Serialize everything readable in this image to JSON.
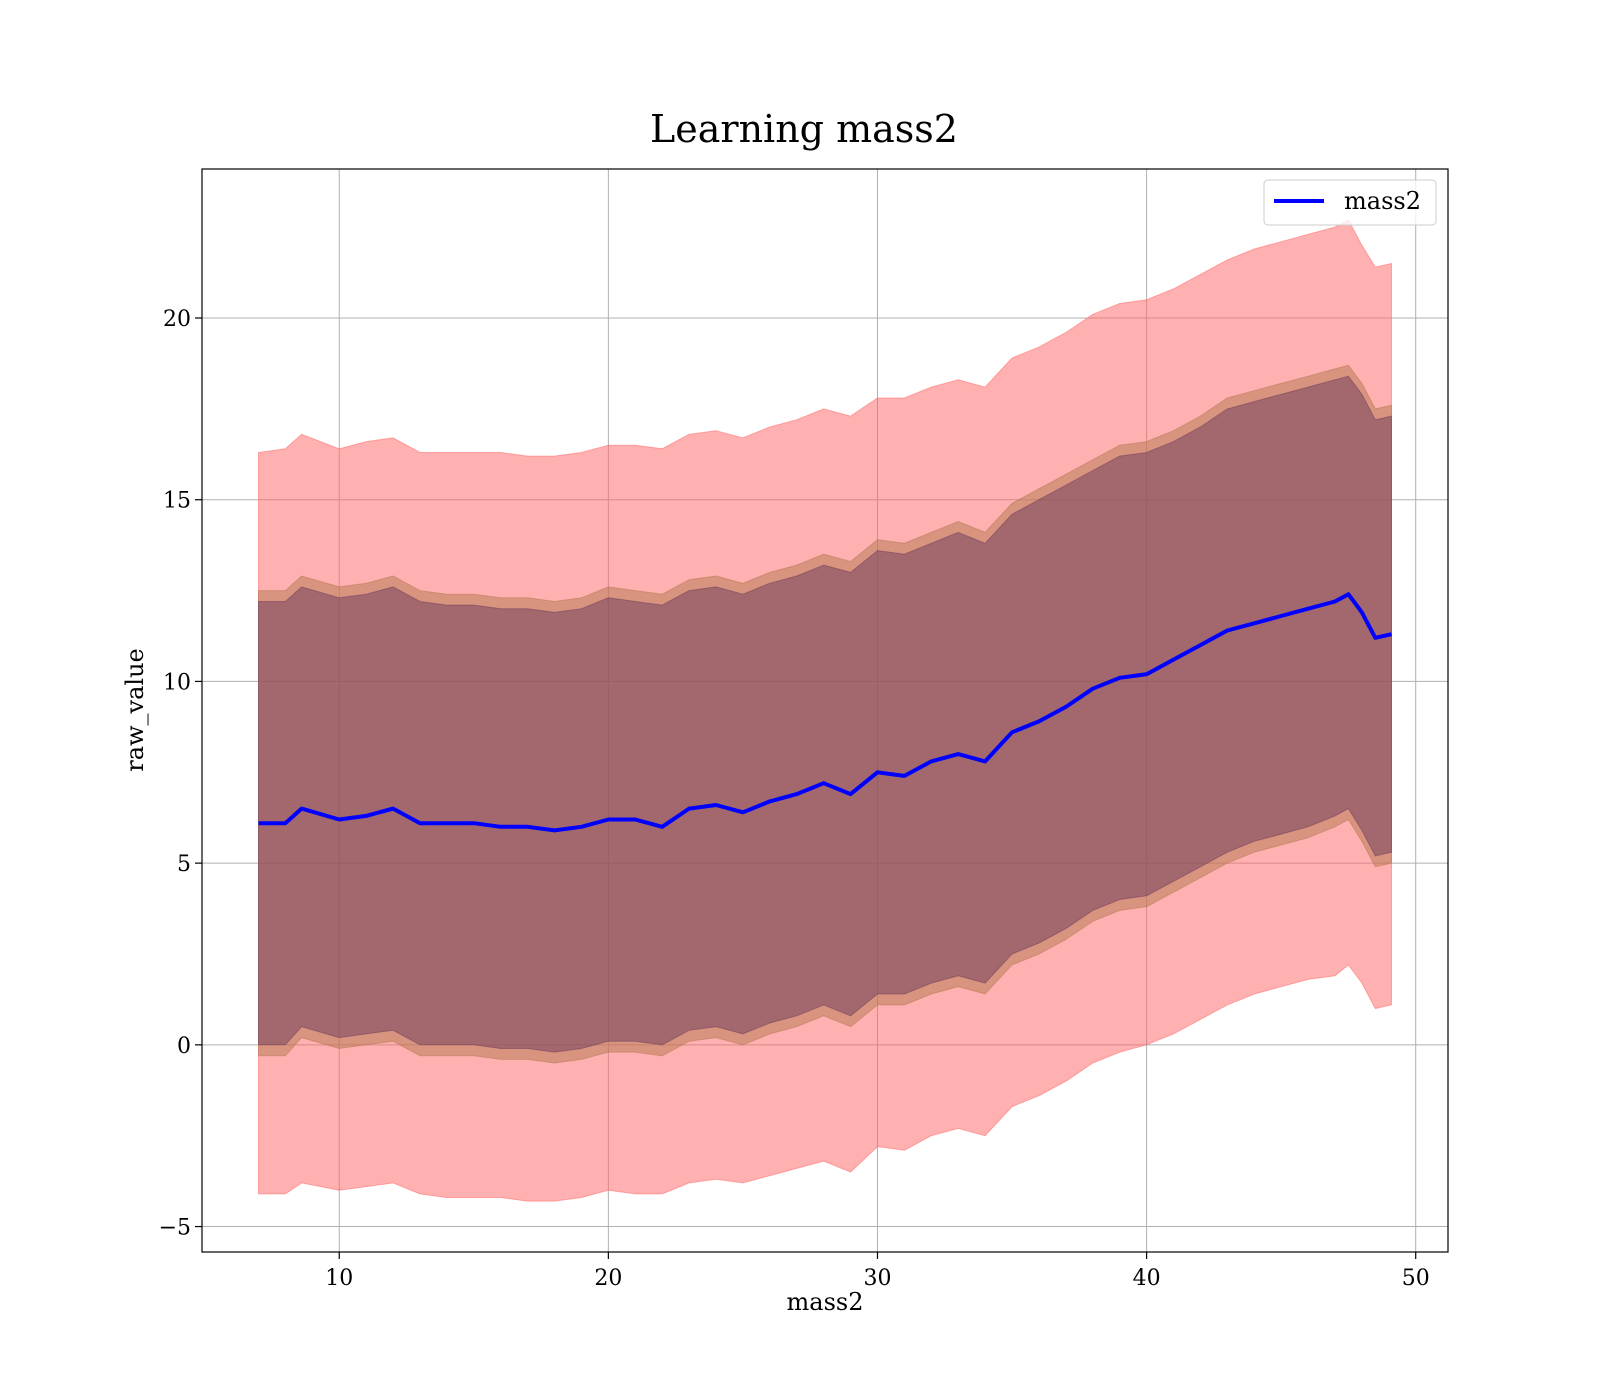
{
  "chart_data": {
    "type": "area",
    "title": "Learning mass2",
    "xlabel": "mass2",
    "ylabel": "raw_value",
    "xlim": [
      4.9,
      51.2
    ],
    "ylim": [
      -5.7,
      24.1
    ],
    "xticks": [
      10,
      20,
      30,
      40,
      50
    ],
    "xtick_labels": [
      "10",
      "20",
      "30",
      "40",
      "50"
    ],
    "yticks": [
      -5,
      0,
      5,
      10,
      15,
      20
    ],
    "ytick_labels": [
      "−5",
      "0",
      "5",
      "10",
      "15",
      "20"
    ],
    "grid": true,
    "legend": {
      "position": "top-right",
      "entries": [
        "mass2"
      ]
    },
    "x": [
      7.0,
      8.0,
      8.6,
      10.0,
      11.0,
      12.0,
      13.0,
      14.0,
      15.0,
      16.0,
      17.0,
      18.0,
      19.0,
      20.0,
      21.0,
      22.0,
      23.0,
      24.0,
      25.0,
      26.0,
      27.0,
      28.0,
      29.0,
      30.0,
      31.0,
      32.0,
      33.0,
      34.0,
      35.0,
      36.0,
      37.0,
      38.0,
      39.0,
      40.0,
      41.0,
      42.0,
      43.0,
      44.0,
      45.0,
      46.0,
      47.0,
      47.5,
      48.0,
      48.5,
      49.1
    ],
    "series": [
      {
        "name": "mass2",
        "color": "#0000ff",
        "values": [
          6.1,
          6.1,
          6.5,
          6.2,
          6.3,
          6.5,
          6.1,
          6.1,
          6.1,
          6.0,
          6.0,
          5.9,
          6.0,
          6.2,
          6.2,
          6.0,
          6.5,
          6.6,
          6.4,
          6.7,
          6.9,
          7.2,
          6.9,
          7.5,
          7.4,
          7.8,
          8.0,
          7.8,
          8.6,
          8.9,
          9.3,
          9.8,
          10.1,
          10.2,
          10.6,
          11.0,
          11.4,
          11.6,
          11.8,
          12.0,
          12.2,
          12.4,
          11.9,
          11.2,
          11.3
        ]
      }
    ],
    "bands": [
      {
        "name": "outer",
        "color": "#ff6464",
        "upper": [
          16.3,
          16.4,
          16.8,
          16.4,
          16.6,
          16.7,
          16.3,
          16.3,
          16.3,
          16.3,
          16.2,
          16.2,
          16.3,
          16.5,
          16.5,
          16.4,
          16.8,
          16.9,
          16.7,
          17.0,
          17.2,
          17.5,
          17.3,
          17.8,
          17.8,
          18.1,
          18.3,
          18.1,
          18.9,
          19.2,
          19.6,
          20.1,
          20.4,
          20.5,
          20.8,
          21.2,
          21.6,
          21.9,
          22.1,
          22.3,
          22.5,
          22.7,
          22.0,
          21.4,
          21.5
        ],
        "lower": [
          -4.1,
          -4.1,
          -3.8,
          -4.0,
          -3.9,
          -3.8,
          -4.1,
          -4.2,
          -4.2,
          -4.2,
          -4.3,
          -4.3,
          -4.2,
          -4.0,
          -4.1,
          -4.1,
          -3.8,
          -3.7,
          -3.8,
          -3.6,
          -3.4,
          -3.2,
          -3.5,
          -2.8,
          -2.9,
          -2.5,
          -2.3,
          -2.5,
          -1.7,
          -1.4,
          -1.0,
          -0.5,
          -0.2,
          0.0,
          0.3,
          0.7,
          1.1,
          1.4,
          1.6,
          1.8,
          1.9,
          2.2,
          1.7,
          1.0,
          1.1
        ]
      },
      {
        "name": "middle",
        "color": "#b47850",
        "upper": [
          12.5,
          12.5,
          12.9,
          12.6,
          12.7,
          12.9,
          12.5,
          12.4,
          12.4,
          12.3,
          12.3,
          12.2,
          12.3,
          12.6,
          12.5,
          12.4,
          12.8,
          12.9,
          12.7,
          13.0,
          13.2,
          13.5,
          13.3,
          13.9,
          13.8,
          14.1,
          14.4,
          14.1,
          14.9,
          15.3,
          15.7,
          16.1,
          16.5,
          16.6,
          16.9,
          17.3,
          17.8,
          18.0,
          18.2,
          18.4,
          18.6,
          18.7,
          18.2,
          17.5,
          17.6
        ],
        "lower": [
          -0.3,
          -0.3,
          0.2,
          -0.1,
          0.0,
          0.1,
          -0.3,
          -0.3,
          -0.3,
          -0.4,
          -0.4,
          -0.5,
          -0.4,
          -0.2,
          -0.2,
          -0.3,
          0.1,
          0.2,
          0.0,
          0.3,
          0.5,
          0.8,
          0.5,
          1.1,
          1.1,
          1.4,
          1.6,
          1.4,
          2.2,
          2.5,
          2.9,
          3.4,
          3.7,
          3.8,
          4.2,
          4.6,
          5.0,
          5.3,
          5.5,
          5.7,
          6.0,
          6.2,
          5.6,
          4.9,
          5.0
        ]
      },
      {
        "name": "inner",
        "color": "#6e3c5a",
        "upper": [
          12.2,
          12.2,
          12.6,
          12.3,
          12.4,
          12.6,
          12.2,
          12.1,
          12.1,
          12.0,
          12.0,
          11.9,
          12.0,
          12.3,
          12.2,
          12.1,
          12.5,
          12.6,
          12.4,
          12.7,
          12.9,
          13.2,
          13.0,
          13.6,
          13.5,
          13.8,
          14.1,
          13.8,
          14.6,
          15.0,
          15.4,
          15.8,
          16.2,
          16.3,
          16.6,
          17.0,
          17.5,
          17.7,
          17.9,
          18.1,
          18.3,
          18.4,
          17.9,
          17.2,
          17.3
        ],
        "lower": [
          0.0,
          0.0,
          0.5,
          0.2,
          0.3,
          0.4,
          0.0,
          0.0,
          0.0,
          -0.1,
          -0.1,
          -0.2,
          -0.1,
          0.1,
          0.1,
          0.0,
          0.4,
          0.5,
          0.3,
          0.6,
          0.8,
          1.1,
          0.8,
          1.4,
          1.4,
          1.7,
          1.9,
          1.7,
          2.5,
          2.8,
          3.2,
          3.7,
          4.0,
          4.1,
          4.5,
          4.9,
          5.3,
          5.6,
          5.8,
          6.0,
          6.3,
          6.5,
          5.9,
          5.2,
          5.3
        ]
      }
    ]
  }
}
